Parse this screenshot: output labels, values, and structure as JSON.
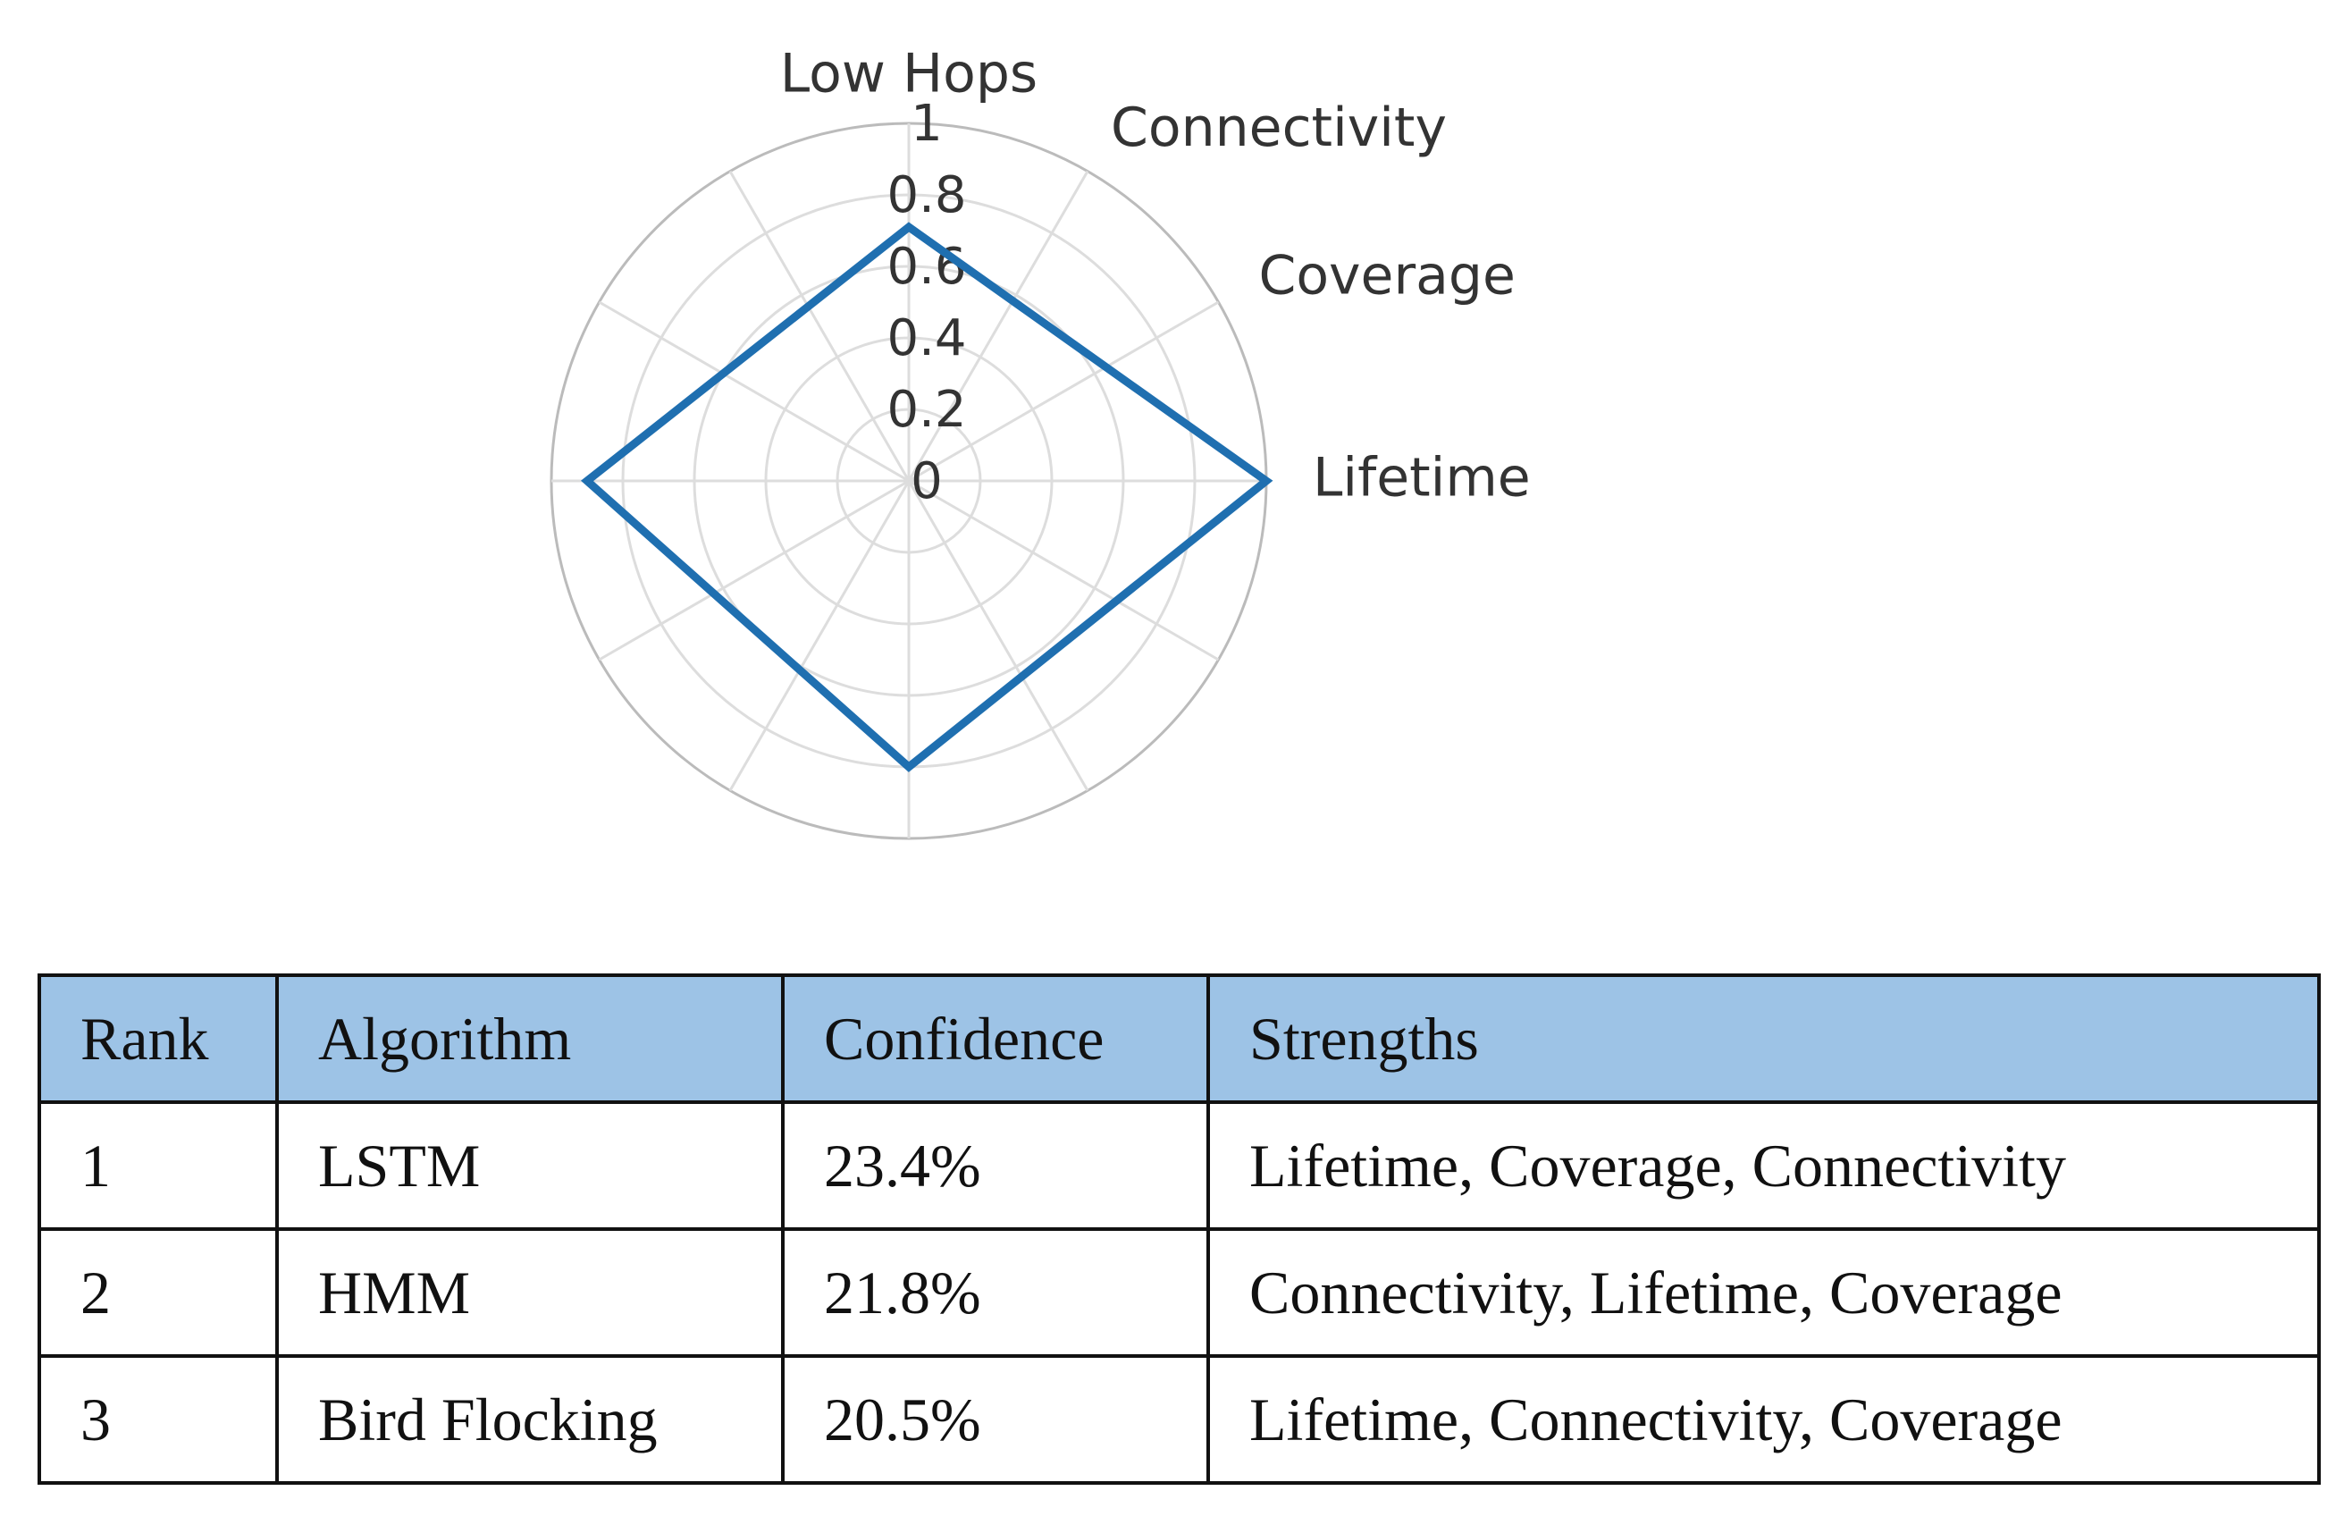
{
  "chart_data": {
    "type": "polar",
    "rlim": [
      0,
      1
    ],
    "rticks": [
      0,
      0.2,
      0.4,
      0.6,
      0.8,
      1
    ],
    "thetaticks": [
      {
        "value": 0,
        "label": "Lifetime"
      },
      {
        "value": 30,
        "label": "Coverage"
      },
      {
        "value": 60,
        "label": "Connectivity"
      },
      {
        "value": 90,
        "label": "Low Hops"
      },
      120,
      150,
      180,
      210,
      240,
      270,
      300,
      330
    ],
    "grid": true,
    "series": [
      {
        "color": "#1f6fb0",
        "theta": [
          0,
          90,
          180,
          270
        ],
        "values": [
          1,
          0.71,
          0.9,
          0.8
        ]
      }
    ]
  },
  "table": {
    "header": [
      "Rank",
      "Algorithm",
      "Confidence",
      "Strengths"
    ],
    "rows": [
      [
        "1",
        "LSTM",
        "23.4%",
        "Lifetime, Coverage, Connectivity"
      ],
      [
        "2",
        "HMM",
        "21.8%",
        "Connectivity, Lifetime, Coverage"
      ],
      [
        "3",
        "Bird Flocking",
        "20.5%",
        "Lifetime, Connectivity, Coverage"
      ]
    ]
  }
}
